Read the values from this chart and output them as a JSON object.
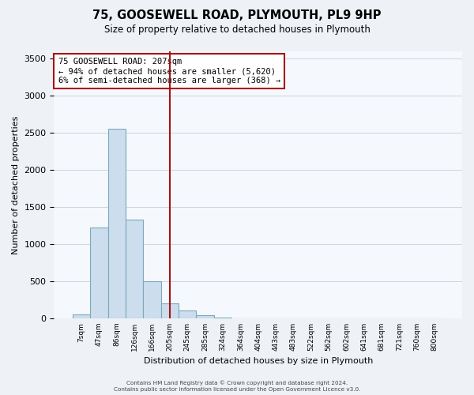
{
  "title": "75, GOOSEWELL ROAD, PLYMOUTH, PL9 9HP",
  "subtitle": "Size of property relative to detached houses in Plymouth",
  "xlabel": "Distribution of detached houses by size in Plymouth",
  "ylabel": "Number of detached properties",
  "bin_labels": [
    "7sqm",
    "47sqm",
    "86sqm",
    "126sqm",
    "166sqm",
    "205sqm",
    "245sqm",
    "285sqm",
    "324sqm",
    "364sqm",
    "404sqm",
    "443sqm",
    "483sqm",
    "522sqm",
    "562sqm",
    "602sqm",
    "641sqm",
    "681sqm",
    "721sqm",
    "760sqm",
    "800sqm"
  ],
  "bar_values": [
    50,
    1220,
    2560,
    1330,
    500,
    200,
    110,
    40,
    5,
    0,
    0,
    0,
    0,
    0,
    0,
    0,
    0,
    0,
    0,
    0,
    0
  ],
  "bar_color": "#ccdded",
  "bar_edge_color": "#7aaabb",
  "vline_x_index": 5,
  "vline_color": "#aa1111",
  "annotation_title": "75 GOOSEWELL ROAD: 207sqm",
  "annotation_line1": "← 94% of detached houses are smaller (5,620)",
  "annotation_line2": "6% of semi-detached houses are larger (368) →",
  "annotation_box_color": "#ffffff",
  "annotation_box_edge": "#aa1111",
  "ylim": [
    0,
    3600
  ],
  "yticks": [
    0,
    500,
    1000,
    1500,
    2000,
    2500,
    3000,
    3500
  ],
  "footer1": "Contains HM Land Registry data © Crown copyright and database right 2024.",
  "footer2": "Contains public sector information licensed under the Open Government Licence v3.0.",
  "bg_color": "#eef2f7",
  "plot_bg_color": "#f5f8fc",
  "grid_color": "#c8d0da"
}
